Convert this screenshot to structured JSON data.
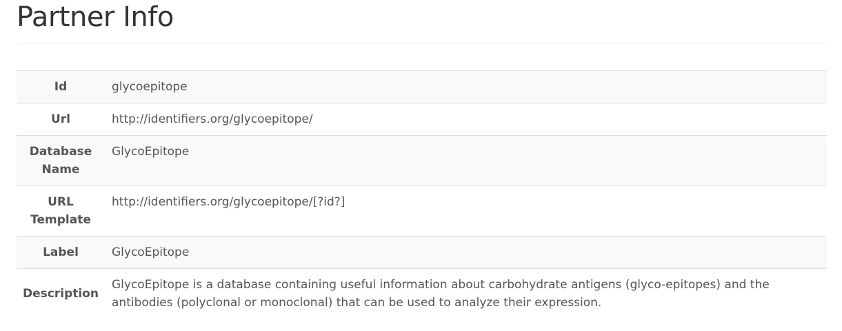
{
  "page": {
    "title": "Partner Info"
  },
  "partner_info": {
    "rows": [
      {
        "label": "Id",
        "value": "glycoepitope"
      },
      {
        "label": "Url",
        "value": "http://identifiers.org/glycoepitope/"
      },
      {
        "label": "Database Name",
        "value": "GlycoEpitope"
      },
      {
        "label": "URL Template",
        "value": "http://identifiers.org/glycoepitope/[?id?]"
      },
      {
        "label": "Label",
        "value": "GlycoEpitope"
      },
      {
        "label": "Description",
        "value": "GlycoEpitope is a database containing useful information about carbohydrate antigens (glyco-epitopes) and the antibodies (polyclonal or monoclonal) that can be used to analyze their expression."
      }
    ]
  }
}
